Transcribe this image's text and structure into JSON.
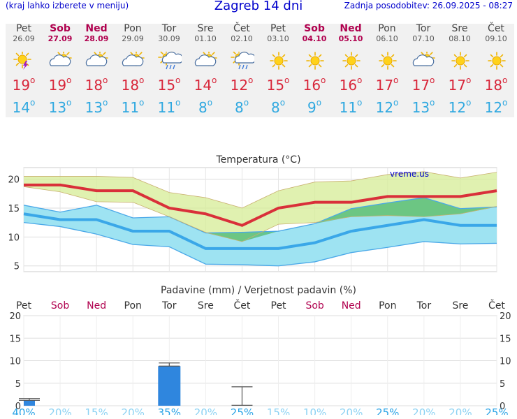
{
  "header": {
    "left_note": "(kraj lahko izberete v meniju)",
    "title": "Zagreb 14 dni",
    "updated": "Zadnja posodobitev: 26.09.2025 - 08:27"
  },
  "days": [
    {
      "name": "Pet",
      "date": "26.09",
      "weekend": false,
      "icon": "sun-storm-icon",
      "max": "19",
      "min": "14"
    },
    {
      "name": "Sob",
      "date": "27.09",
      "weekend": true,
      "icon": "sun-cloud-icon",
      "max": "19",
      "min": "13"
    },
    {
      "name": "Ned",
      "date": "28.09",
      "weekend": true,
      "icon": "sun-cloud-icon",
      "max": "18",
      "min": "13"
    },
    {
      "name": "Pon",
      "date": "29.09",
      "weekend": false,
      "icon": "sun-cloud-icon",
      "max": "18",
      "min": "11"
    },
    {
      "name": "Tor",
      "date": "30.09",
      "weekend": false,
      "icon": "sun-rain-cloud-icon",
      "max": "15",
      "min": "11"
    },
    {
      "name": "Sre",
      "date": "01.10",
      "weekend": false,
      "icon": "sun-cloud-icon",
      "max": "14",
      "min": "8"
    },
    {
      "name": "Čet",
      "date": "02.10",
      "weekend": false,
      "icon": "sun-rain-cloud-icon",
      "max": "12",
      "min": "8"
    },
    {
      "name": "Pet",
      "date": "03.10",
      "weekend": false,
      "icon": "sun-icon",
      "max": "15",
      "min": "8"
    },
    {
      "name": "Sob",
      "date": "04.10",
      "weekend": true,
      "icon": "sun-icon",
      "max": "16",
      "min": "9"
    },
    {
      "name": "Ned",
      "date": "05.10",
      "weekend": true,
      "icon": "sun-icon",
      "max": "16",
      "min": "11"
    },
    {
      "name": "Pon",
      "date": "06.10",
      "weekend": false,
      "icon": "sun-icon",
      "max": "17",
      "min": "12"
    },
    {
      "name": "Tor",
      "date": "07.10",
      "weekend": false,
      "icon": "sun-cloud-icon",
      "max": "17",
      "min": "13"
    },
    {
      "name": "Sre",
      "date": "08.10",
      "weekend": false,
      "icon": "sun-icon",
      "max": "17",
      "min": "12"
    },
    {
      "name": "Čet",
      "date": "09.10",
      "weekend": false,
      "icon": "sun-icon",
      "max": "18",
      "min": "12"
    }
  ],
  "chart_data": [
    {
      "type": "line",
      "title": "Temperatura (°C)",
      "watermark": "vreme.us",
      "ylim": [
        4,
        22
      ],
      "yticks": [
        5,
        10,
        15,
        20
      ],
      "grid": true,
      "categories": [
        "Pet",
        "Sob",
        "Ned",
        "Pon",
        "Tor",
        "Sre",
        "Čet",
        "Pet",
        "Sob",
        "Ned",
        "Pon",
        "Tor",
        "Sre",
        "Čet"
      ],
      "series": [
        {
          "key": "max",
          "values": [
            19,
            19,
            18,
            18,
            15,
            14,
            12,
            15,
            16,
            16,
            17,
            17,
            17,
            18
          ]
        },
        {
          "key": "min",
          "values": [
            14,
            13,
            13,
            11,
            11,
            8,
            8,
            8,
            9,
            11,
            12,
            13,
            12,
            12
          ]
        },
        {
          "key": "max_upper",
          "values": [
            20.5,
            20.5,
            20.5,
            20.3,
            17.7,
            16.8,
            15,
            18,
            19.5,
            19.7,
            20.8,
            21.3,
            20.2,
            21.2
          ]
        },
        {
          "key": "max_lower",
          "values": [
            18.7,
            17.8,
            16.1,
            16,
            13.5,
            10.8,
            9.2,
            12.2,
            12.5,
            13.5,
            13.7,
            13.5,
            14,
            15.3
          ]
        },
        {
          "key": "min_upper",
          "values": [
            15.5,
            14.3,
            15.5,
            13.3,
            13.5,
            10.7,
            10.8,
            11,
            12.3,
            14.9,
            15.9,
            16.8,
            14.9,
            15.2
          ]
        },
        {
          "key": "min_lower",
          "values": [
            12.5,
            11.8,
            10.5,
            8.7,
            8.3,
            5.3,
            5.2,
            5,
            5.7,
            7.3,
            8.2,
            9.2,
            8.8,
            8.9
          ]
        }
      ],
      "colors": {
        "max": "#d9303a",
        "min": "#3aa7e8",
        "max_band": "#d6ec96",
        "min_band": "#9ee3f2",
        "overlap": "#5cbf7b"
      }
    },
    {
      "type": "bar",
      "title": "Padavine (mm) / Verjetnost padavin (%)",
      "ylim": [
        0,
        20
      ],
      "yticks": [
        0,
        5,
        10,
        15,
        20
      ],
      "categories": [
        "Pet",
        "Sob",
        "Ned",
        "Pon",
        "Tor",
        "Sre",
        "Čet",
        "Pet",
        "Sob",
        "Ned",
        "Pon",
        "Tor",
        "Sre",
        "Čet"
      ],
      "weekend": [
        false,
        true,
        true,
        false,
        false,
        false,
        false,
        false,
        true,
        true,
        false,
        false,
        false,
        false
      ],
      "values": [
        1.2,
        0,
        0,
        0,
        8.8,
        0,
        0.1,
        0,
        0,
        0,
        0,
        0,
        0,
        0
      ],
      "error_high": [
        1.6,
        0,
        0,
        0,
        9.5,
        0,
        4.2,
        0,
        0,
        0,
        0,
        0,
        0,
        0
      ],
      "probability": [
        "40%",
        "20%",
        "15%",
        "20%",
        "35%",
        "20%",
        "25%",
        "15%",
        "10%",
        "20%",
        "25%",
        "20%",
        "20%",
        "25%"
      ],
      "probability_strong": [
        true,
        false,
        false,
        false,
        true,
        false,
        true,
        false,
        false,
        false,
        true,
        false,
        false,
        true
      ],
      "colors": {
        "bar": "#2f86de",
        "prob_strong": "#2aa3e6",
        "prob_weak": "#8cd2f3"
      }
    }
  ]
}
